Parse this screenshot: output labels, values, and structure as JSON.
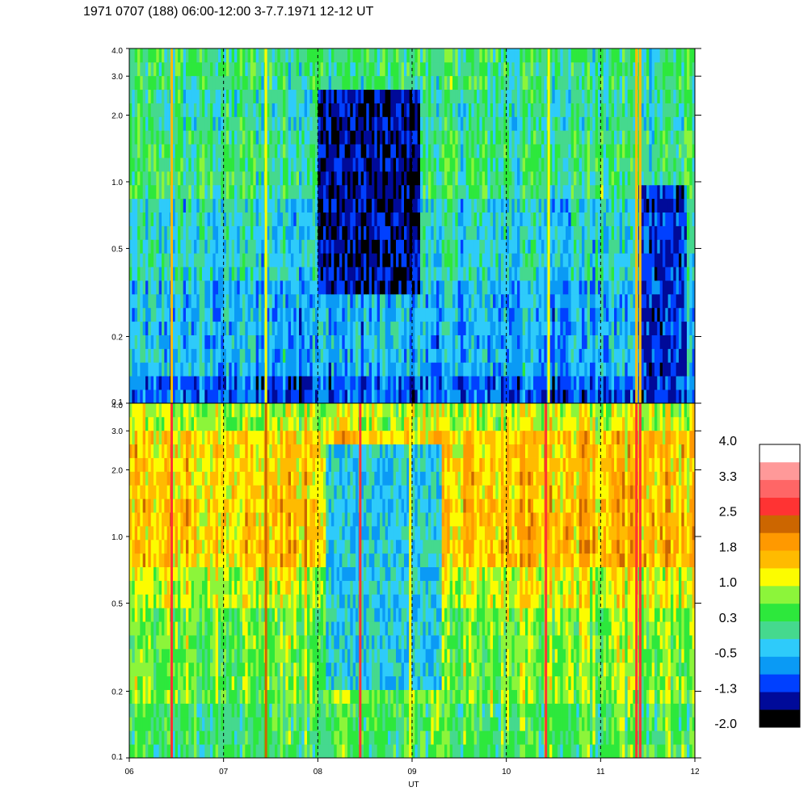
{
  "title": "1971 0707 (188) 06:00-12:00 3-7.7.1971  12-12 UT",
  "colors": {
    "scale": [
      "#000000",
      "#000a99",
      "#0040ff",
      "#0a9af5",
      "#2ecbfa",
      "#45d98e",
      "#2de83c",
      "#8cf53a",
      "#fcfc00",
      "#ffbb00",
      "#ff9900",
      "#cc6600",
      "#ff3333",
      "#ff6666",
      "#ff9999",
      "#ffffff"
    ]
  },
  "chart_data": {
    "type": "heatmap",
    "title": "1971 0707 (188) 06:00-12:00 3-7.7.1971  12-12 UT",
    "xlabel": "UT",
    "x_ticks": [
      "06",
      "07",
      "08",
      "09",
      "10",
      "11",
      "12"
    ],
    "xlim": [
      6,
      12
    ],
    "y_scale": "log",
    "ylim": [
      0.1,
      4.0
    ],
    "y_ticks": [
      "4.0",
      "3.0",
      "2.0",
      "1.0",
      "0.5",
      "0.2",
      "0.1"
    ],
    "dashed_hour_lines": [
      7,
      8,
      9,
      10,
      11
    ],
    "panels": [
      {
        "position": "top",
        "background_level": -0.5,
        "bands": [
          {
            "ymin": 0.1,
            "ymax": 0.14,
            "level": -1.0
          },
          {
            "ymin": 0.14,
            "ymax": 0.35,
            "level": -0.5
          },
          {
            "ymin": 0.35,
            "ymax": 0.9,
            "level": -0.2
          },
          {
            "ymin": 0.9,
            "ymax": 1.6,
            "level": 0.2
          },
          {
            "ymin": 1.6,
            "ymax": 2.5,
            "level": 0.0
          },
          {
            "ymin": 2.5,
            "ymax": 4.0,
            "level": 0.2
          }
        ],
        "dark_intervals": [
          {
            "x0": 8.0,
            "x1": 9.1,
            "ymin": 0.3,
            "ymax": 2.5,
            "level": -1.5
          },
          {
            "x0": 11.4,
            "x1": 11.9,
            "ymin": 0.1,
            "ymax": 1.0,
            "level": -1.2
          }
        ],
        "bright_lines": [
          {
            "x": 6.45,
            "level": 1.4
          },
          {
            "x": 7.45,
            "level": 1.2
          },
          {
            "x": 10.45,
            "level": 1.2
          },
          {
            "x": 11.38,
            "level": 1.5
          },
          {
            "x": 11.42,
            "level": 1.6
          }
        ]
      },
      {
        "position": "bottom",
        "background_level": 0.8,
        "bands": [
          {
            "ymin": 0.1,
            "ymax": 0.18,
            "level": 0.4
          },
          {
            "ymin": 0.18,
            "ymax": 0.45,
            "level": 0.7
          },
          {
            "ymin": 0.45,
            "ymax": 0.75,
            "level": 1.1
          },
          {
            "ymin": 0.75,
            "ymax": 1.4,
            "level": 1.6
          },
          {
            "ymin": 1.4,
            "ymax": 3.0,
            "level": 1.5
          },
          {
            "ymin": 3.0,
            "ymax": 4.0,
            "level": 1.0
          }
        ],
        "dark_intervals": [
          {
            "x0": 8.1,
            "x1": 9.3,
            "ymin": 0.2,
            "ymax": 2.5,
            "level": -0.3
          }
        ],
        "bright_lines": [
          {
            "x": 6.45,
            "level": 2.5
          },
          {
            "x": 7.45,
            "level": 2.4
          },
          {
            "x": 8.45,
            "level": 2.5
          },
          {
            "x": 8.98,
            "level": 1.0
          },
          {
            "x": 10.42,
            "level": 2.5
          },
          {
            "x": 11.38,
            "level": 2.6
          },
          {
            "x": 11.42,
            "level": 2.6
          }
        ]
      }
    ],
    "colorbar": {
      "tick_labels": [
        "4.0",
        "3.3",
        "2.5",
        "1.8",
        "1.0",
        "0.3",
        "-0.5",
        "-1.3",
        "-2.0"
      ],
      "min": -2.0,
      "max": 4.0
    }
  }
}
